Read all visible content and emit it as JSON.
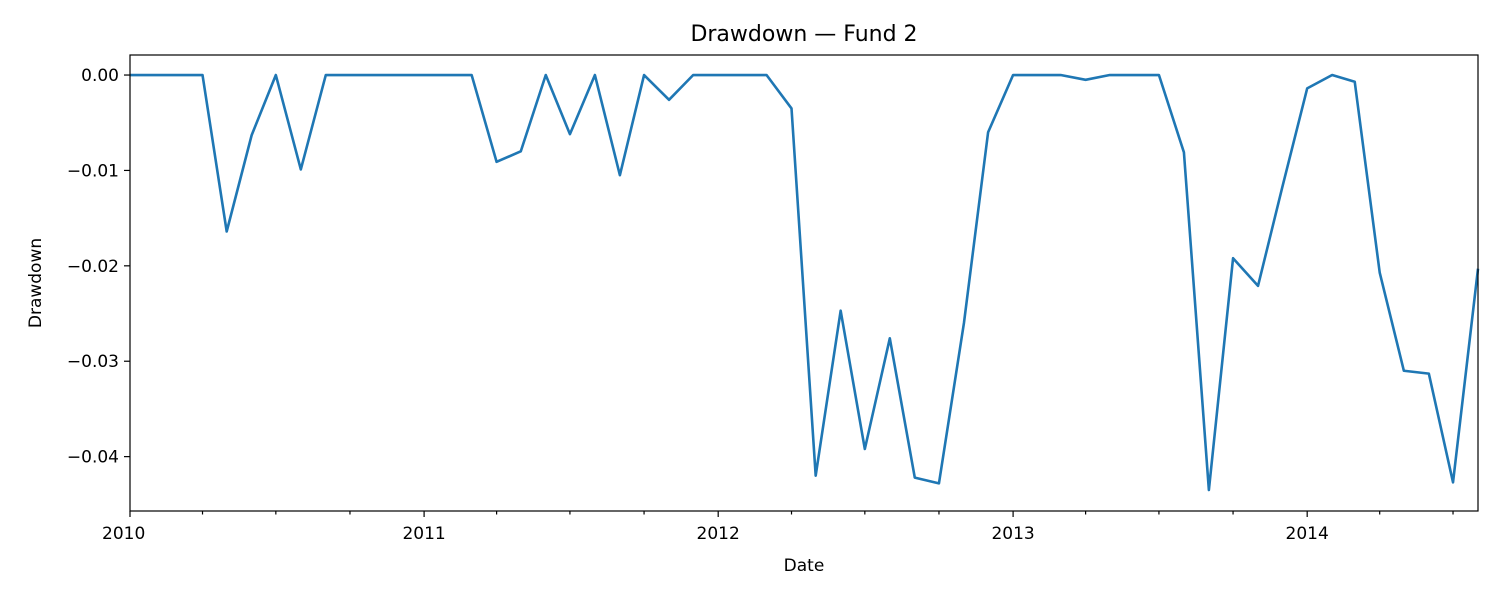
{
  "chart_data": {
    "type": "line",
    "title": "Drawdown — Fund 2",
    "xlabel": "Date",
    "ylabel": "Drawdown",
    "xlim": [
      "2010-01-01",
      "2014-08-01"
    ],
    "ylim": [
      -0.0457,
      0.0021
    ],
    "x_major_ticks": [
      {
        "date": "2010-01-01",
        "label": "2010"
      },
      {
        "date": "2011-01-01",
        "label": "2011"
      },
      {
        "date": "2012-01-01",
        "label": "2012"
      },
      {
        "date": "2013-01-01",
        "label": "2013"
      },
      {
        "date": "2014-01-01",
        "label": "2014"
      }
    ],
    "x_minor_ticks": [
      "2010-04-01",
      "2010-07-01",
      "2010-10-01",
      "2011-04-01",
      "2011-07-01",
      "2011-10-01",
      "2012-04-01",
      "2012-07-01",
      "2012-10-01",
      "2013-04-01",
      "2013-07-01",
      "2013-10-01",
      "2014-04-01",
      "2014-07-01"
    ],
    "y_ticks": [
      {
        "value": 0.0,
        "label": "0.00"
      },
      {
        "value": -0.01,
        "label": "−0.01"
      },
      {
        "value": -0.02,
        "label": "−0.02"
      },
      {
        "value": -0.03,
        "label": "−0.03"
      },
      {
        "value": -0.04,
        "label": "−0.04"
      }
    ],
    "grid": false,
    "line_color": "#1f77b4",
    "series": [
      {
        "x": [
          "2010-01-01",
          "2010-02-01",
          "2010-03-01",
          "2010-04-01",
          "2010-05-01",
          "2010-06-01",
          "2010-07-01",
          "2010-08-01",
          "2010-09-01",
          "2010-10-01",
          "2010-11-01",
          "2010-12-01",
          "2011-01-01",
          "2011-02-01",
          "2011-03-01",
          "2011-04-01",
          "2011-05-01",
          "2011-06-01",
          "2011-07-01",
          "2011-08-01",
          "2011-09-01",
          "2011-10-01",
          "2011-11-01",
          "2011-12-01",
          "2012-01-01",
          "2012-02-01",
          "2012-03-01",
          "2012-04-01",
          "2012-05-01",
          "2012-06-01",
          "2012-07-01",
          "2012-08-01",
          "2012-09-01",
          "2012-10-01",
          "2012-11-01",
          "2012-12-01",
          "2013-01-01",
          "2013-02-01",
          "2013-03-01",
          "2013-04-01",
          "2013-05-01",
          "2013-06-01",
          "2013-07-01",
          "2013-08-01",
          "2013-09-01",
          "2013-10-01",
          "2013-11-01",
          "2013-12-01",
          "2014-01-01",
          "2014-02-01",
          "2014-03-01",
          "2014-04-01",
          "2014-05-01",
          "2014-06-01",
          "2014-07-01",
          "2014-08-01"
        ],
        "values": [
          0.0,
          0.0,
          0.0,
          0.0,
          -0.0164,
          -0.0063,
          0.0,
          -0.0099,
          0.0,
          0.0,
          0.0,
          0.0,
          0.0,
          0.0,
          0.0,
          -0.0091,
          -0.008,
          0.0,
          -0.0062,
          0.0,
          -0.0105,
          0.0,
          -0.0026,
          0.0,
          0.0,
          0.0,
          0.0,
          -0.0035,
          -0.042,
          -0.0247,
          -0.0392,
          -0.0276,
          -0.0422,
          -0.0428,
          -0.026,
          -0.006,
          0.0,
          0.0,
          0.0,
          -0.0005,
          0.0,
          0.0,
          0.0,
          -0.0081,
          -0.0435,
          -0.0192,
          -0.0221,
          -0.0118,
          -0.0014,
          0.0,
          -0.0007,
          -0.0207,
          -0.031,
          -0.0313,
          -0.0427,
          -0.0203
        ]
      }
    ]
  }
}
